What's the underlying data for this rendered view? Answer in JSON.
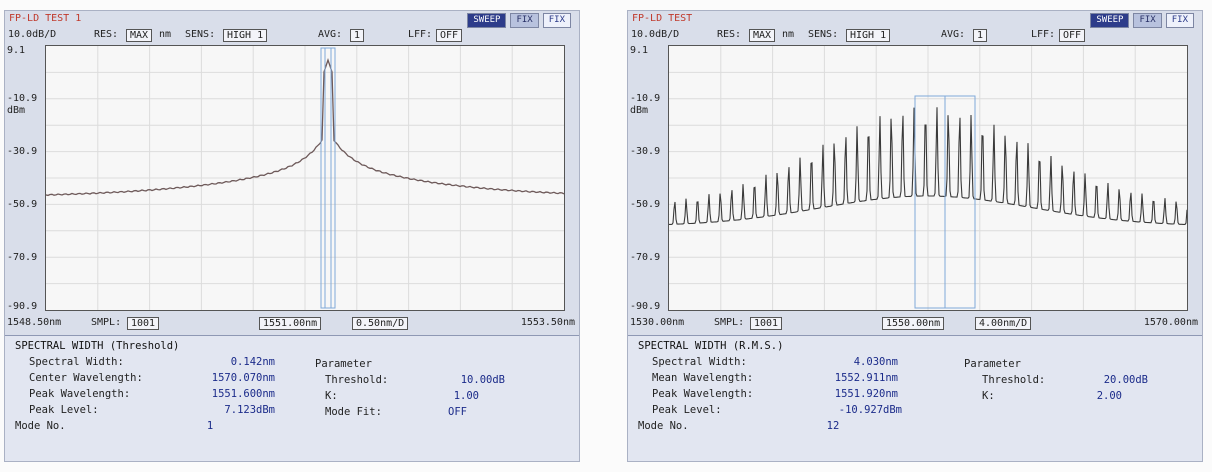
{
  "screens": [
    {
      "title": "FP-LD TEST 1",
      "mode_buttons": [
        "SWEEP",
        "FIX",
        "FIX"
      ],
      "scale": "10.0dB/D",
      "res_label": "RES:",
      "res_value": "MAX",
      "res_unit": "nm",
      "sens_label": "SENS:",
      "sens_value": "HIGH 1",
      "avg_label": "AVG:",
      "avg_value": "1",
      "lff_label": "LFF:",
      "lff_value": "OFF",
      "y_ticks": [
        "9.1",
        "-10.9",
        "-30.9",
        "-50.9",
        "-70.9",
        "-90.9"
      ],
      "y_unit": "dBm",
      "x_start": "1548.50nm",
      "smpl_label": "SMPL:",
      "smpl_value": "1001",
      "x_center": "1551.00nm",
      "x_span": "0.50nm/D",
      "x_stop": "1553.50nm",
      "analysis_title": "SPECTRAL WIDTH (Threshold)",
      "results": [
        {
          "label": "Spectral Width:",
          "value": "0.142nm"
        },
        {
          "label": "Center Wavelength:",
          "value": "1570.070nm"
        },
        {
          "label": "Peak Wavelength:",
          "value": "1551.600nm"
        },
        {
          "label": "Peak Level:",
          "value": "7.123dBm"
        },
        {
          "label": "Mode No.",
          "value": "1"
        }
      ],
      "parameter_title": "Parameter",
      "parameters": [
        {
          "label": "Threshold:",
          "value": "10.00dB"
        },
        {
          "label": "K:",
          "value": "1.00"
        },
        {
          "label": "Mode Fit:",
          "value": "OFF"
        }
      ],
      "trace_color": "#6e5a5a"
    },
    {
      "title": "FP-LD TEST",
      "mode_buttons": [
        "SWEEP",
        "FIX",
        "FIX"
      ],
      "scale": "10.0dB/D",
      "res_label": "RES:",
      "res_value": "MAX",
      "res_unit": "nm",
      "sens_label": "SENS:",
      "sens_value": "HIGH 1",
      "avg_label": "AVG:",
      "avg_value": "1",
      "lff_label": "LFF:",
      "lff_value": "OFF",
      "y_ticks": [
        "9.1",
        "-10.9",
        "-30.9",
        "-50.9",
        "-70.9",
        "-90.9"
      ],
      "y_unit": "dBm",
      "x_start": "1530.00nm",
      "smpl_label": "SMPL:",
      "smpl_value": "1001",
      "x_center": "1550.00nm",
      "x_span": "4.00nm/D",
      "x_stop": "1570.00nm",
      "analysis_title": "SPECTRAL WIDTH (R.M.S.)",
      "results": [
        {
          "label": "Spectral Width:",
          "value": "4.030nm"
        },
        {
          "label": "Mean Wavelength:",
          "value": "1552.911nm"
        },
        {
          "label": "Peak Wavelength:",
          "value": "1551.920nm"
        },
        {
          "label": "Peak Level:",
          "value": "-10.927dBm"
        },
        {
          "label": "Mode No.",
          "value": "12"
        }
      ],
      "parameter_title": "Parameter",
      "parameters": [
        {
          "label": "Threshold:",
          "value": "20.00dB"
        },
        {
          "label": "K:",
          "value": "2.00"
        }
      ],
      "trace_color": "#3a3a3a"
    }
  ]
}
